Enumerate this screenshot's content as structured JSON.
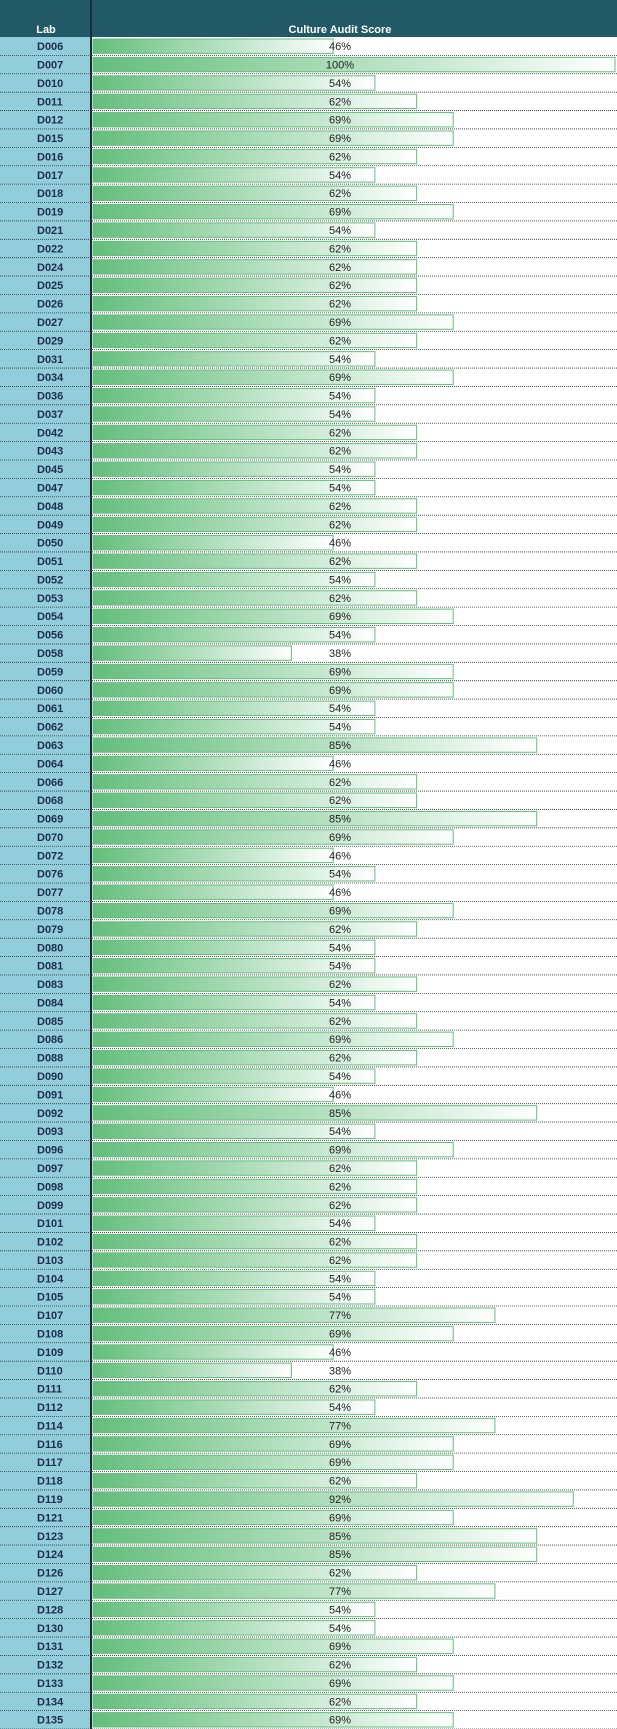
{
  "table": {
    "headers": [
      "Lab",
      "Culture Audit Score"
    ],
    "rows": [
      {
        "lab": "D006",
        "score": 46,
        "label": "46%"
      },
      {
        "lab": "D007",
        "score": 100,
        "label": "100%"
      },
      {
        "lab": "D010",
        "score": 54,
        "label": "54%"
      },
      {
        "lab": "D011",
        "score": 62,
        "label": "62%"
      },
      {
        "lab": "D012",
        "score": 69,
        "label": "69%"
      },
      {
        "lab": "D015",
        "score": 69,
        "label": "69%"
      },
      {
        "lab": "D016",
        "score": 62,
        "label": "62%"
      },
      {
        "lab": "D017",
        "score": 54,
        "label": "54%"
      },
      {
        "lab": "D018",
        "score": 62,
        "label": "62%"
      },
      {
        "lab": "D019",
        "score": 69,
        "label": "69%"
      },
      {
        "lab": "D021",
        "score": 54,
        "label": "54%"
      },
      {
        "lab": "D022",
        "score": 62,
        "label": "62%"
      },
      {
        "lab": "D024",
        "score": 62,
        "label": "62%"
      },
      {
        "lab": "D025",
        "score": 62,
        "label": "62%"
      },
      {
        "lab": "D026",
        "score": 62,
        "label": "62%"
      },
      {
        "lab": "D027",
        "score": 69,
        "label": "69%"
      },
      {
        "lab": "D029",
        "score": 62,
        "label": "62%"
      },
      {
        "lab": "D031",
        "score": 54,
        "label": "54%"
      },
      {
        "lab": "D034",
        "score": 69,
        "label": "69%"
      },
      {
        "lab": "D036",
        "score": 54,
        "label": "54%"
      },
      {
        "lab": "D037",
        "score": 54,
        "label": "54%"
      },
      {
        "lab": "D042",
        "score": 62,
        "label": "62%"
      },
      {
        "lab": "D043",
        "score": 62,
        "label": "62%"
      },
      {
        "lab": "D045",
        "score": 54,
        "label": "54%"
      },
      {
        "lab": "D047",
        "score": 54,
        "label": "54%"
      },
      {
        "lab": "D048",
        "score": 62,
        "label": "62%"
      },
      {
        "lab": "D049",
        "score": 62,
        "label": "62%"
      },
      {
        "lab": "D050",
        "score": 46,
        "label": "46%"
      },
      {
        "lab": "D051",
        "score": 62,
        "label": "62%"
      },
      {
        "lab": "D052",
        "score": 54,
        "label": "54%"
      },
      {
        "lab": "D053",
        "score": 62,
        "label": "62%"
      },
      {
        "lab": "D054",
        "score": 69,
        "label": "69%"
      },
      {
        "lab": "D056",
        "score": 54,
        "label": "54%"
      },
      {
        "lab": "D058",
        "score": 38,
        "label": "38%"
      },
      {
        "lab": "D059",
        "score": 69,
        "label": "69%"
      },
      {
        "lab": "D060",
        "score": 69,
        "label": "69%"
      },
      {
        "lab": "D061",
        "score": 54,
        "label": "54%"
      },
      {
        "lab": "D062",
        "score": 54,
        "label": "54%"
      },
      {
        "lab": "D063",
        "score": 85,
        "label": "85%"
      },
      {
        "lab": "D064",
        "score": 46,
        "label": "46%"
      },
      {
        "lab": "D066",
        "score": 62,
        "label": "62%"
      },
      {
        "lab": "D068",
        "score": 62,
        "label": "62%"
      },
      {
        "lab": "D069",
        "score": 85,
        "label": "85%"
      },
      {
        "lab": "D070",
        "score": 69,
        "label": "69%"
      },
      {
        "lab": "D072",
        "score": 46,
        "label": "46%"
      },
      {
        "lab": "D076",
        "score": 54,
        "label": "54%"
      },
      {
        "lab": "D077",
        "score": 46,
        "label": "46%"
      },
      {
        "lab": "D078",
        "score": 69,
        "label": "69%"
      },
      {
        "lab": "D079",
        "score": 62,
        "label": "62%"
      },
      {
        "lab": "D080",
        "score": 54,
        "label": "54%"
      },
      {
        "lab": "D081",
        "score": 54,
        "label": "54%"
      },
      {
        "lab": "D083",
        "score": 62,
        "label": "62%"
      },
      {
        "lab": "D084",
        "score": 54,
        "label": "54%"
      },
      {
        "lab": "D085",
        "score": 62,
        "label": "62%"
      },
      {
        "lab": "D086",
        "score": 69,
        "label": "69%"
      },
      {
        "lab": "D088",
        "score": 62,
        "label": "62%"
      },
      {
        "lab": "D090",
        "score": 54,
        "label": "54%"
      },
      {
        "lab": "D091",
        "score": 46,
        "label": "46%"
      },
      {
        "lab": "D092",
        "score": 85,
        "label": "85%"
      },
      {
        "lab": "D093",
        "score": 54,
        "label": "54%"
      },
      {
        "lab": "D096",
        "score": 69,
        "label": "69%"
      },
      {
        "lab": "D097",
        "score": 62,
        "label": "62%"
      },
      {
        "lab": "D098",
        "score": 62,
        "label": "62%"
      },
      {
        "lab": "D099",
        "score": 62,
        "label": "62%"
      },
      {
        "lab": "D101",
        "score": 54,
        "label": "54%"
      },
      {
        "lab": "D102",
        "score": 62,
        "label": "62%"
      },
      {
        "lab": "D103",
        "score": 62,
        "label": "62%"
      },
      {
        "lab": "D104",
        "score": 54,
        "label": "54%"
      },
      {
        "lab": "D105",
        "score": 54,
        "label": "54%"
      },
      {
        "lab": "D107",
        "score": 77,
        "label": "77%"
      },
      {
        "lab": "D108",
        "score": 69,
        "label": "69%"
      },
      {
        "lab": "D109",
        "score": 46,
        "label": "46%"
      },
      {
        "lab": "D110",
        "score": 38,
        "label": "38%"
      },
      {
        "lab": "D111",
        "score": 62,
        "label": "62%"
      },
      {
        "lab": "D112",
        "score": 54,
        "label": "54%"
      },
      {
        "lab": "D114",
        "score": 77,
        "label": "77%"
      },
      {
        "lab": "D116",
        "score": 69,
        "label": "69%"
      },
      {
        "lab": "D117",
        "score": 69,
        "label": "69%"
      },
      {
        "lab": "D118",
        "score": 62,
        "label": "62%"
      },
      {
        "lab": "D119",
        "score": 92,
        "label": "92%"
      },
      {
        "lab": "D121",
        "score": 69,
        "label": "69%"
      },
      {
        "lab": "D123",
        "score": 85,
        "label": "85%"
      },
      {
        "lab": "D124",
        "score": 85,
        "label": "85%"
      },
      {
        "lab": "D126",
        "score": 62,
        "label": "62%"
      },
      {
        "lab": "D127",
        "score": 77,
        "label": "77%"
      },
      {
        "lab": "D128",
        "score": 54,
        "label": "54%"
      },
      {
        "lab": "D130",
        "score": 54,
        "label": "54%"
      },
      {
        "lab": "D131",
        "score": 69,
        "label": "69%"
      },
      {
        "lab": "D132",
        "score": 62,
        "label": "62%"
      },
      {
        "lab": "D133",
        "score": 69,
        "label": "69%"
      },
      {
        "lab": "D134",
        "score": 62,
        "label": "62%"
      },
      {
        "lab": "D135",
        "score": 69,
        "label": "69%"
      }
    ]
  }
}
